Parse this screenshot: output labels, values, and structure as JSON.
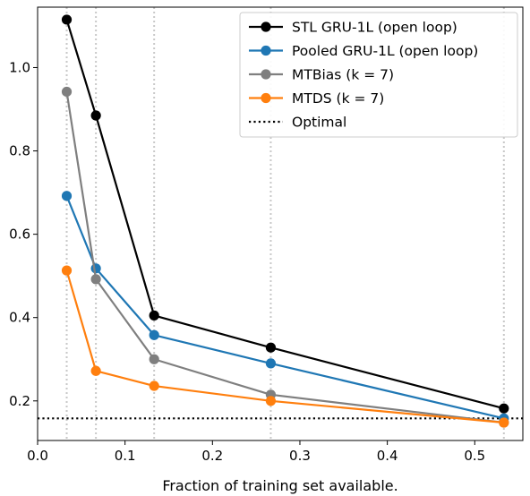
{
  "chart_data": {
    "type": "line",
    "title": "",
    "xlabel": "Fraction of training set available.",
    "ylabel": "",
    "xlim": [
      0.0,
      0.555
    ],
    "ylim": [
      0.105,
      1.145
    ],
    "xticks": [
      0.0,
      0.1,
      0.2,
      0.3,
      0.4,
      0.5
    ],
    "xtick_labels": [
      "0.0",
      "0.1",
      "0.2",
      "0.3",
      "0.4",
      "0.5"
    ],
    "yticks": [
      0.2,
      0.4,
      0.6,
      0.8,
      1.0
    ],
    "ytick_labels": [
      "0.2",
      "0.4",
      "0.6",
      "0.8",
      "1.0"
    ],
    "vertical_guides": [
      0.0333,
      0.0667,
      0.1333,
      0.2667,
      0.5333
    ],
    "x": [
      0.0333,
      0.0667,
      0.1333,
      0.2667,
      0.5333
    ],
    "legend_position": "top-right",
    "series": [
      {
        "name": "STL GRU-1L (open loop)",
        "color": "#000000",
        "values": [
          1.115,
          0.885,
          0.405,
          0.328,
          0.182
        ]
      },
      {
        "name": "Pooled GRU-1L (open loop)",
        "color": "#1f77b4",
        "values": [
          0.692,
          0.518,
          0.358,
          0.29,
          0.158
        ]
      },
      {
        "name": "MTBias (k = 7)",
        "color": "#7f7f7f",
        "values": [
          0.942,
          0.492,
          0.3,
          0.215,
          0.148
        ]
      },
      {
        "name": "MTDS (k = 7)",
        "color": "#ff7f0e",
        "values": [
          0.513,
          0.272,
          0.236,
          0.2,
          0.148
        ]
      }
    ],
    "optimal": {
      "name": "Optimal",
      "value": 0.158,
      "style": "dotted",
      "color": "#000000"
    }
  }
}
